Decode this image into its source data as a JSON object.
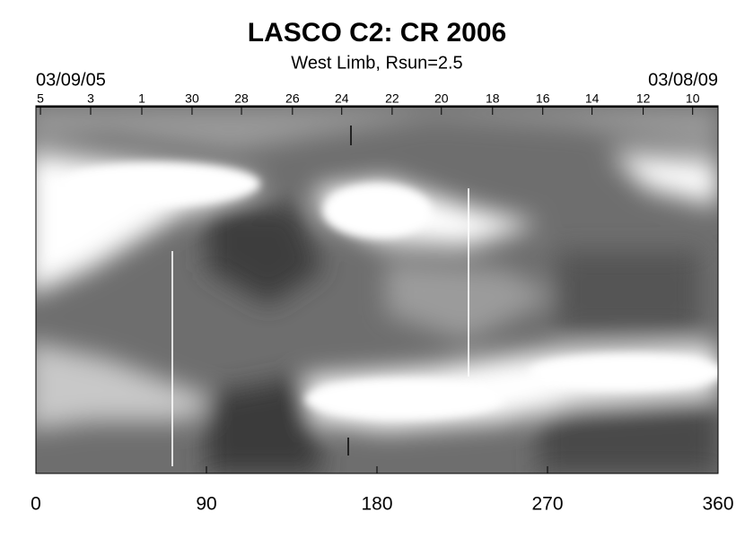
{
  "chart_data": {
    "type": "image",
    "title": "LASCO C2: CR 2006",
    "subtitle": "West Limb, Rsun=2.5",
    "start_date": "03/09/05",
    "end_date": "03/08/09",
    "xlim": [
      0,
      360
    ],
    "xticks": [
      0,
      90,
      180,
      270,
      360
    ],
    "x2ticks": [
      {
        "value": 2.4,
        "label": "5"
      },
      {
        "value": 28.9,
        "label": "3"
      },
      {
        "value": 55.9,
        "label": "1"
      },
      {
        "value": 82.4,
        "label": "30"
      },
      {
        "value": 108.5,
        "label": "28"
      },
      {
        "value": 135.4,
        "label": "26"
      },
      {
        "value": 161.4,
        "label": "24"
      },
      {
        "value": 188,
        "label": "22"
      },
      {
        "value": 214,
        "label": "20"
      },
      {
        "value": 241,
        "label": "18"
      },
      {
        "value": 267.5,
        "label": "16"
      },
      {
        "value": 293.5,
        "label": "14"
      },
      {
        "value": 320.5,
        "label": "12"
      },
      {
        "value": 346.6,
        "label": "10"
      }
    ]
  }
}
